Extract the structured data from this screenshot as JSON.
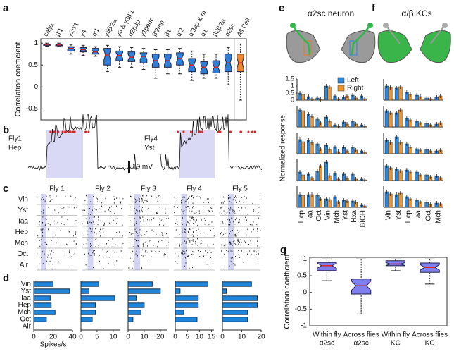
{
  "panel_labels": [
    "a",
    "b",
    "c",
    "d",
    "e",
    "f",
    "g"
  ],
  "panel_b": {
    "traces": [
      {
        "fly": "Fly1",
        "odor": "Hep"
      },
      {
        "fly": "Fly4",
        "odor": "Yst"
      }
    ],
    "scale_bar": "10 mV"
  },
  "panel_c": {
    "flies": [
      "Fly 1",
      "Fly 2",
      "Fly 3",
      "Fly 4",
      "Fly 5"
    ],
    "odors": [
      "Vin",
      "Yst",
      "Iaa",
      "Hep",
      "Mch",
      "Oct",
      "Air"
    ]
  },
  "panel_e_title": "α2sc neuron",
  "panel_f_title": "α/β KCs",
  "panel_e_ylabel": "Normalized response",
  "chart_data": [
    {
      "type": "box",
      "ylabel": "Correlation coefficient",
      "categories": [
        "calyx",
        "β'1",
        "γ2α'1",
        "γ4",
        "α'1",
        "γ5β'2a",
        "γ3 & γ3β'1",
        "α2p3p",
        "γ1pedc",
        "β'2mp",
        "β1",
        "α'2",
        "α'3ap & m",
        "α1",
        "β2β'2a",
        "α2sc",
        "All Cell"
      ],
      "median": [
        0.97,
        0.96,
        0.88,
        0.85,
        0.8,
        0.73,
        0.72,
        0.68,
        0.7,
        0.6,
        0.6,
        0.65,
        0.5,
        0.45,
        0.45,
        0.55,
        0.55
      ],
      "q1": [
        0.95,
        0.94,
        0.82,
        0.8,
        0.75,
        0.5,
        0.6,
        0.58,
        0.55,
        0.45,
        0.45,
        0.5,
        0.35,
        0.3,
        0.32,
        0.35,
        0.35
      ],
      "q3": [
        0.98,
        0.98,
        0.92,
        0.9,
        0.88,
        0.88,
        0.82,
        0.8,
        0.78,
        0.75,
        0.75,
        0.78,
        0.65,
        0.58,
        0.6,
        0.75,
        0.75
      ],
      "whislo": [
        0.93,
        0.92,
        0.75,
        0.72,
        0.7,
        0.35,
        0.45,
        0.45,
        0.4,
        0.2,
        0.3,
        0.3,
        0.15,
        0.2,
        0.2,
        0.05,
        -0.3
      ],
      "whishi": [
        1.0,
        1.0,
        0.97,
        0.95,
        0.92,
        0.95,
        0.92,
        0.9,
        0.88,
        0.85,
        0.85,
        0.88,
        0.82,
        0.75,
        0.75,
        0.9,
        0.98
      ],
      "colors": [
        "#2f7fd8",
        "#2f7fd8",
        "#2f7fd8",
        "#2f7fd8",
        "#2f7fd8",
        "#2f7fd8",
        "#2f7fd8",
        "#2f7fd8",
        "#2f7fd8",
        "#2f7fd8",
        "#2f7fd8",
        "#2f7fd8",
        "#2f7fd8",
        "#2f7fd8",
        "#2f7fd8",
        "#2f7fd8",
        "#f0862a"
      ],
      "ylim": [
        -0.75,
        1.1
      ],
      "yticks": [
        -0.5,
        0,
        0.5,
        1
      ]
    },
    {
      "type": "hbar",
      "categories": [
        "Vin",
        "Yst",
        "Iaa",
        "Hep",
        "Mch",
        "Oct",
        "Air"
      ],
      "values": [
        20,
        37,
        17,
        18,
        22,
        13,
        0
      ],
      "color": "#1f86dc",
      "xlim": [
        0,
        40
      ],
      "xticks": [
        0,
        20,
        40
      ],
      "xlabel": "Spikes/s"
    },
    {
      "type": "hbar",
      "values": [
        5.5,
        2.5,
        10.5,
        4.5,
        4.5,
        3.5,
        0
      ],
      "color": "#1f86dc",
      "xlim": [
        0,
        12
      ],
      "xticks": [
        0,
        5,
        10
      ]
    },
    {
      "type": "hbar",
      "values": [
        15,
        20,
        5,
        10,
        8,
        3,
        0
      ],
      "color": "#1f86dc",
      "xlim": [
        0,
        24
      ],
      "xticks": [
        0,
        10,
        20
      ]
    },
    {
      "type": "hbar",
      "values": [
        13.5,
        2,
        9.5,
        9.5,
        3.5,
        9,
        0
      ],
      "color": "#1f86dc",
      "xlim": [
        0,
        16
      ],
      "xticks": [
        0,
        5,
        10,
        15
      ]
    },
    {
      "type": "hbar",
      "values": [
        15,
        2,
        18,
        18,
        13,
        13,
        0
      ],
      "color": "#1f86dc",
      "xlim": [
        0,
        20
      ],
      "xticks": [
        0,
        10,
        20
      ]
    },
    {
      "type": "gbar",
      "ylim": [
        0,
        1.5
      ],
      "yticks": [
        0,
        0.5,
        1,
        1.5
      ],
      "series": [
        {
          "name": "Left",
          "color": "#2d86d9",
          "values": [
            0.5,
            0.25,
            0.15,
            1.0,
            0.3,
            0.2,
            0.35,
            0.3
          ]
        },
        {
          "name": "Right",
          "color": "#f0952f",
          "values": [
            0.4,
            0.1,
            0.05,
            0.95,
            0.1,
            0.3,
            0.15,
            0.1
          ]
        }
      ]
    },
    {
      "type": "gbar",
      "ylim": [
        0,
        1.5
      ],
      "series": [
        {
          "color": "#2d86d9",
          "values": [
            1.2,
            0.9,
            0.55,
            0.7,
            0.15,
            0.35,
            0.4,
            0.15
          ]
        },
        {
          "color": "#f0952f",
          "values": [
            1.15,
            0.75,
            0.3,
            0.4,
            0.05,
            0.2,
            0.2,
            0.05
          ]
        }
      ]
    },
    {
      "type": "gbar",
      "ylim": [
        0,
        1.5
      ],
      "series": [
        {
          "color": "#2d86d9",
          "values": [
            1.0,
            0.95,
            0.7,
            0.6,
            0.5,
            0.45,
            0.45,
            0.2
          ]
        },
        {
          "color": "#f0952f",
          "values": [
            0.85,
            0.8,
            0.35,
            0.3,
            0.15,
            0.2,
            0.25,
            0.1
          ]
        }
      ]
    },
    {
      "type": "gbar",
      "ylim": [
        0,
        1.5
      ],
      "series": [
        {
          "color": "#2d86d9",
          "values": [
            0.6,
            0.45,
            0.65,
            1.3,
            0.5,
            0.45,
            0.45,
            0.1
          ]
        },
        {
          "color": "#f0952f",
          "values": [
            0.4,
            0.2,
            1.05,
            0.35,
            0.1,
            0.15,
            0.1,
            0.05
          ]
        }
      ]
    },
    {
      "type": "gbar",
      "ylim": [
        0,
        1.5
      ],
      "categories": [
        "Hep",
        "Iaa",
        "Oct",
        "Vin",
        "Mch",
        "Yst",
        "Hxa",
        "BIOH"
      ],
      "series": [
        {
          "color": "#2d86d9",
          "values": [
            0.9,
            0.9,
            0.85,
            0.6,
            0.75,
            0.5,
            0.45,
            0.15
          ]
        },
        {
          "color": "#f0952f",
          "values": [
            0.85,
            0.9,
            0.6,
            0.55,
            0.4,
            0.45,
            0.35,
            0.1
          ]
        }
      ]
    },
    {
      "type": "gbar",
      "ylim": [
        0,
        1.5
      ],
      "series": [
        {
          "color": "#2d86d9",
          "values": [
            1.0,
            0.85,
            0.55,
            0.35,
            0.15,
            0.2
          ]
        },
        {
          "color": "#f0952f",
          "values": [
            0.9,
            0.95,
            0.4,
            0.25,
            0.1,
            0.3
          ]
        }
      ]
    },
    {
      "type": "gbar",
      "ylim": [
        0,
        1.5
      ],
      "series": [
        {
          "color": "#2d86d9",
          "values": [
            1.15,
            1.0,
            0.6,
            0.4,
            0.25,
            0.2
          ]
        },
        {
          "color": "#f0952f",
          "values": [
            1.0,
            1.2,
            0.5,
            0.3,
            0.15,
            0.3
          ]
        }
      ]
    },
    {
      "type": "gbar",
      "ylim": [
        0,
        1.5
      ],
      "series": [
        {
          "color": "#2d86d9",
          "values": [
            0.95,
            1.2,
            0.7,
            0.35,
            0.3,
            0.2
          ]
        },
        {
          "color": "#f0952f",
          "values": [
            0.8,
            0.8,
            0.45,
            0.25,
            0.2,
            0.25
          ]
        }
      ]
    },
    {
      "type": "gbar",
      "ylim": [
        0,
        1.5
      ],
      "series": [
        {
          "color": "#2d86d9",
          "values": [
            1.05,
            0.8,
            0.75,
            0.6,
            0.4,
            0.3
          ]
        },
        {
          "color": "#f0952f",
          "values": [
            0.9,
            0.7,
            0.6,
            0.4,
            0.25,
            0.2
          ]
        }
      ]
    },
    {
      "type": "gbar",
      "ylim": [
        0,
        1.5
      ],
      "categories": [
        "Vin",
        "Yst",
        "Hep",
        "Iaa",
        "Oct",
        "Mch"
      ],
      "series": [
        {
          "color": "#2d86d9",
          "values": [
            1.1,
            0.9,
            0.75,
            0.5,
            0.35,
            0.3
          ]
        },
        {
          "color": "#f0952f",
          "values": [
            0.95,
            1.0,
            0.6,
            0.4,
            0.2,
            0.25
          ]
        }
      ]
    },
    {
      "type": "box",
      "ylabel": "Correlation coefficient",
      "categories": [
        [
          "Within fly",
          "α2sc"
        ],
        [
          "Across flies",
          "α2sc"
        ],
        [
          "Within fly",
          "KC"
        ],
        [
          "Across flies",
          "KC"
        ]
      ],
      "median": [
        0.8,
        0.2,
        0.85,
        0.75
      ],
      "q1": [
        0.65,
        -0.05,
        0.8,
        0.6
      ],
      "q3": [
        0.9,
        0.4,
        0.95,
        0.88
      ],
      "whislo": [
        0.35,
        -0.65,
        0.65,
        0.25
      ],
      "whishi": [
        1.0,
        1.0,
        1.0,
        1.0
      ],
      "colors": [
        "#7f7ff0",
        "#7f7ff0",
        "#7f7ff0",
        "#7f7ff0"
      ],
      "ylim": [
        -1,
        1.05
      ],
      "yticks": [
        -1,
        -0.5,
        0,
        0.5,
        1
      ]
    }
  ]
}
